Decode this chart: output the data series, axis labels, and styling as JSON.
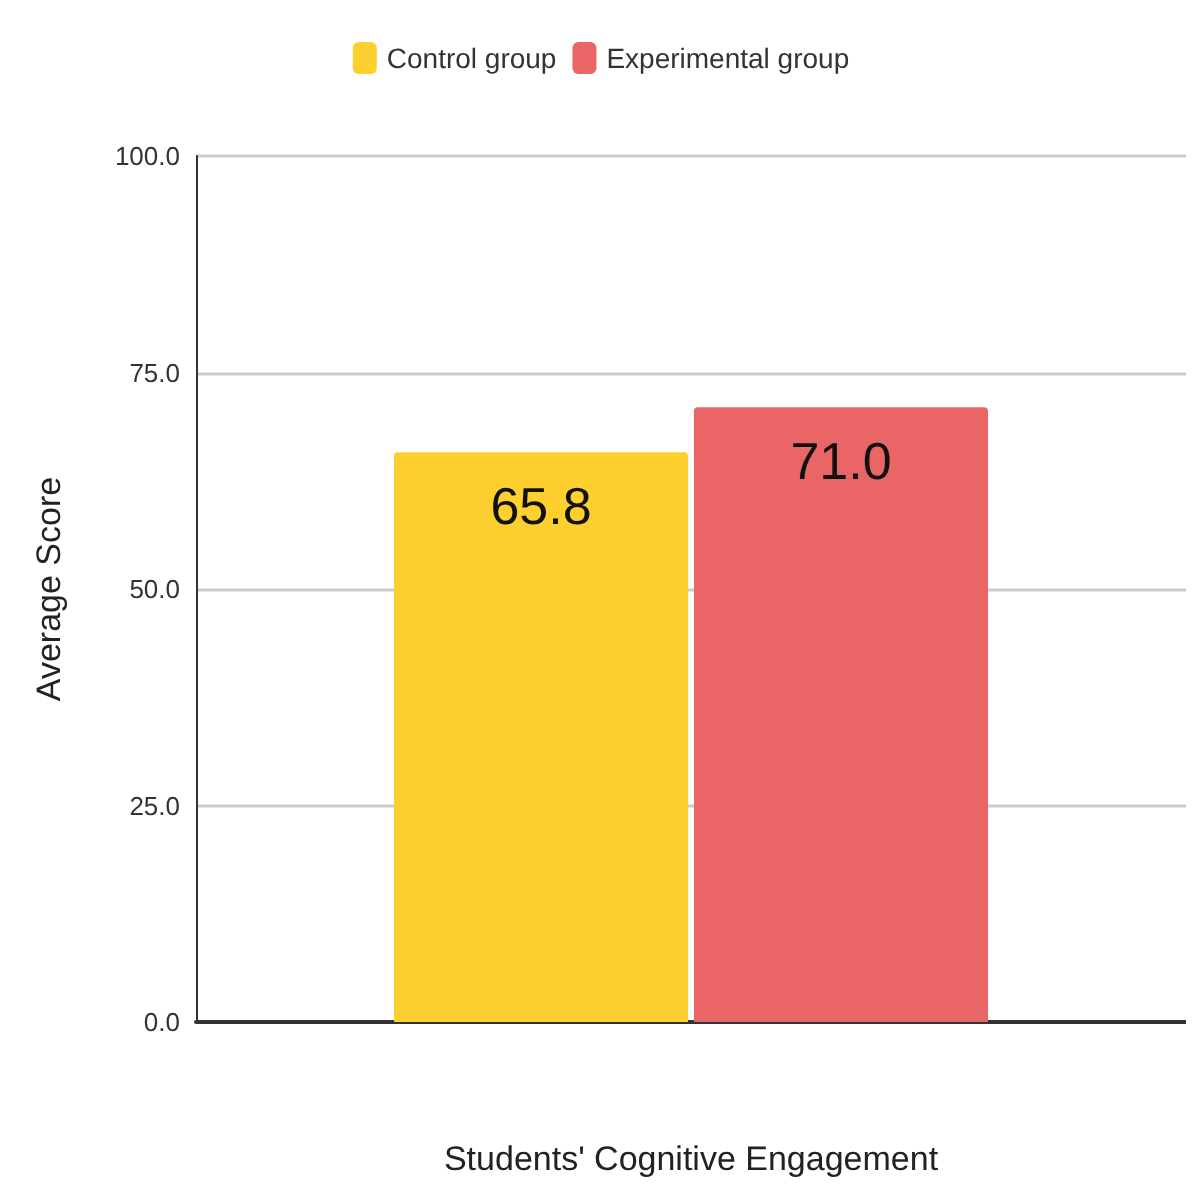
{
  "chart_data": {
    "type": "bar",
    "xlabel": "Students' Cognitive Engagement",
    "ylabel": "Average Score",
    "categories": [
      null
    ],
    "series": [
      {
        "name": "Control group",
        "color": "#fdd02f",
        "values": [
          65.8
        ],
        "value_labels": [
          "65.8"
        ]
      },
      {
        "name": "Experimental group",
        "color": "#ea6565",
        "values": [
          71.0
        ],
        "value_labels": [
          "71.0"
        ]
      }
    ],
    "ylim": [
      0,
      100
    ],
    "yticks": [
      {
        "value": 0,
        "label": "0.0"
      },
      {
        "value": 25,
        "label": "25.0"
      },
      {
        "value": 50,
        "label": "50.0"
      },
      {
        "value": 75,
        "label": "75.0"
      },
      {
        "value": 100,
        "label": "100.0"
      }
    ],
    "grid": "y",
    "legend": "top"
  }
}
